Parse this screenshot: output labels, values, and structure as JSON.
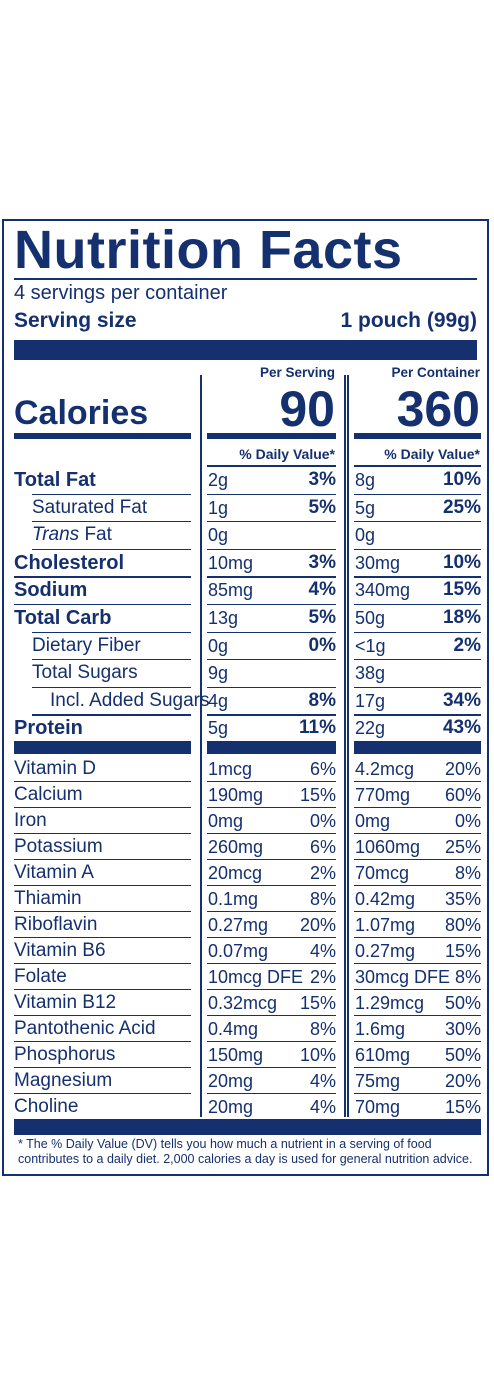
{
  "title": "Nutrition Facts",
  "servings_per_container": "4 servings per container",
  "serving_size_label": "Serving size",
  "serving_size_value": "1 pouch (99g)",
  "calories_label": "Calories",
  "per_serving_label": "Per Serving",
  "per_container_label": "Per Container",
  "calories_per_serving": "90",
  "calories_per_container": "360",
  "daily_value_header": "% Daily Value*",
  "nutrients": [
    {
      "name": "Total Fat",
      "style": "bold",
      "indent": 0,
      "s_amt": "2g",
      "s_pct": "3%",
      "c_amt": "8g",
      "c_pct": "10%"
    },
    {
      "name": "Saturated Fat",
      "style": "normal",
      "indent": 1,
      "s_amt": "1g",
      "s_pct": "5%",
      "c_amt": "5g",
      "c_pct": "25%"
    },
    {
      "name": "Trans",
      "name_suffix": " Fat",
      "style": "trans",
      "indent": 1,
      "s_amt": "0g",
      "s_pct": "",
      "c_amt": "0g",
      "c_pct": ""
    },
    {
      "name": "Cholesterol",
      "style": "bold",
      "indent": 0,
      "s_amt": "10mg",
      "s_pct": "3%",
      "c_amt": "30mg",
      "c_pct": "10%"
    },
    {
      "name": "Sodium",
      "style": "bold",
      "indent": 0,
      "s_amt": "85mg",
      "s_pct": "4%",
      "c_amt": "340mg",
      "c_pct": "15%"
    },
    {
      "name": "Total Carb",
      "style": "bold",
      "indent": 0,
      "s_amt": "13g",
      "s_pct": "5%",
      "c_amt": "50g",
      "c_pct": "18%"
    },
    {
      "name": "Dietary Fiber",
      "style": "normal",
      "indent": 1,
      "s_amt": "0g",
      "s_pct": "0%",
      "c_amt": "<1g",
      "c_pct": "2%"
    },
    {
      "name": "Total Sugars",
      "style": "normal",
      "indent": 1,
      "s_amt": "9g",
      "s_pct": "",
      "c_amt": "38g",
      "c_pct": ""
    },
    {
      "name": "Incl. Added Sugars",
      "style": "normal",
      "indent": 2,
      "s_amt": "4g",
      "s_pct": "8%",
      "c_amt": "17g",
      "c_pct": "34%"
    },
    {
      "name": "Protein",
      "style": "bold",
      "indent": 0,
      "s_amt": "5g",
      "s_pct": "11%",
      "c_amt": "22g",
      "c_pct": "43%"
    }
  ],
  "vitamins": [
    {
      "name": "Vitamin D",
      "s_amt": "1mcg",
      "s_pct": "6%",
      "c_amt": "4.2mcg",
      "c_pct": "20%"
    },
    {
      "name": "Calcium",
      "s_amt": "190mg",
      "s_pct": "15%",
      "c_amt": "770mg",
      "c_pct": "60%"
    },
    {
      "name": "Iron",
      "s_amt": "0mg",
      "s_pct": "0%",
      "c_amt": "0mg",
      "c_pct": "0%"
    },
    {
      "name": "Potassium",
      "s_amt": "260mg",
      "s_pct": "6%",
      "c_amt": "1060mg",
      "c_pct": "25%"
    },
    {
      "name": "Vitamin A",
      "s_amt": "20mcg",
      "s_pct": "2%",
      "c_amt": "70mcg",
      "c_pct": "8%"
    },
    {
      "name": "Thiamin",
      "s_amt": "0.1mg",
      "s_pct": "8%",
      "c_amt": "0.42mg",
      "c_pct": "35%"
    },
    {
      "name": "Riboflavin",
      "s_amt": "0.27mg",
      "s_pct": "20%",
      "c_amt": "1.07mg",
      "c_pct": "80%"
    },
    {
      "name": "Vitamin B6",
      "s_amt": "0.07mg",
      "s_pct": "4%",
      "c_amt": "0.27mg",
      "c_pct": "15%"
    },
    {
      "name": "Folate",
      "s_amt": "10mcg DFE",
      "s_pct": "2%",
      "c_amt": "30mcg DFE",
      "c_pct": "8%"
    },
    {
      "name": "Vitamin B12",
      "s_amt": "0.32mcg",
      "s_pct": "15%",
      "c_amt": "1.29mcg",
      "c_pct": "50%"
    },
    {
      "name": "Pantothenic Acid",
      "s_amt": "0.4mg",
      "s_pct": "8%",
      "c_amt": "1.6mg",
      "c_pct": "30%"
    },
    {
      "name": "Phosphorus",
      "s_amt": "150mg",
      "s_pct": "10%",
      "c_amt": "610mg",
      "c_pct": "50%"
    },
    {
      "name": "Magnesium",
      "s_amt": "20mg",
      "s_pct": "4%",
      "c_amt": "75mg",
      "c_pct": "20%"
    },
    {
      "name": "Choline",
      "s_amt": "20mg",
      "s_pct": "4%",
      "c_amt": "70mg",
      "c_pct": "15%"
    }
  ],
  "footnote": "* The % Daily Value (DV) tells you how much a nutrient in a serving of food contributes to a daily diet. 2,000 calories a day is used for general nutrition advice.",
  "colors": {
    "ink": "#15306f",
    "background": "#ffffff"
  }
}
